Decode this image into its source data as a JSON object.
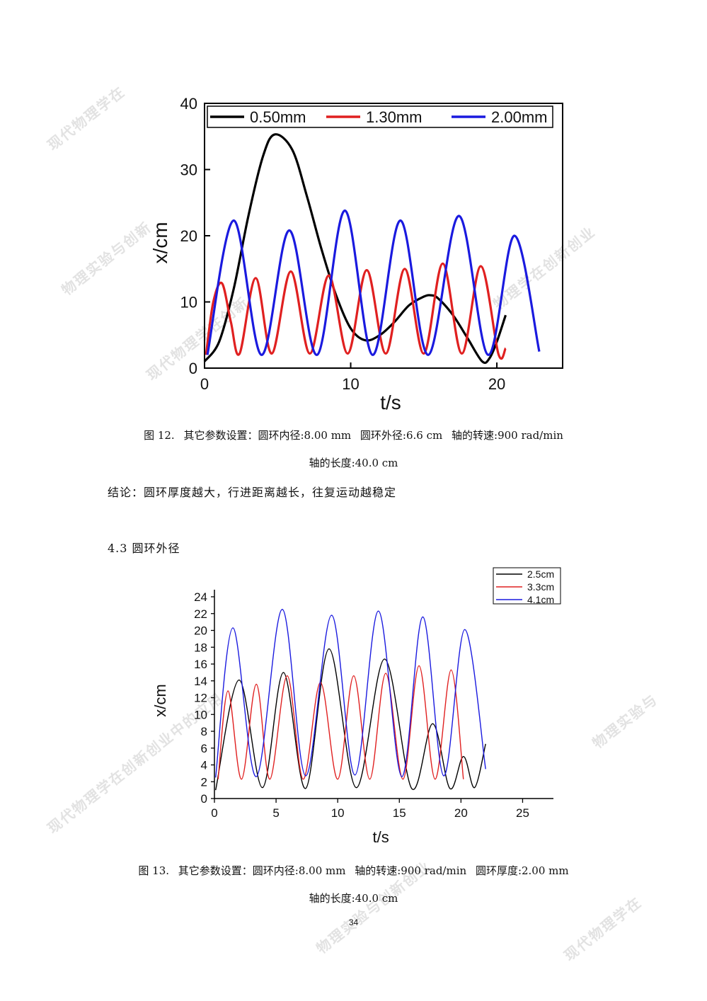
{
  "watermark": {
    "texts": [
      "现代物理学在",
      "物理实验与创新",
      "现代物理学在创新",
      "物理学在创新创业",
      "现代物理学在创新创业中的应用",
      "物理实验与创新创业",
      "现代物理学在",
      "物理实验与"
    ]
  },
  "figure12": {
    "caption_line1": [
      "图 12.",
      "其它参数设置：圆环内径:8.00 mm",
      "圆环外径:6.6 cm",
      "轴的转速:900 rad/min"
    ],
    "caption_line2": "轴的长度:40.0 cm",
    "chart_data": {
      "type": "line",
      "xlabel": "t/s",
      "ylabel": "x/cm",
      "xlim": [
        0,
        24.5
      ],
      "ylim": [
        0,
        40
      ],
      "xticks": [
        0,
        10,
        20
      ],
      "yticks": [
        0,
        10,
        20,
        30,
        40
      ],
      "legend_position": "top",
      "series": [
        {
          "name": "0.50mm",
          "color": "#000000",
          "x": [
            0,
            1,
            2,
            3,
            4,
            4.8,
            6,
            7,
            8,
            9,
            10,
            11,
            12,
            13,
            14,
            15,
            15.5,
            16,
            17,
            18,
            19,
            19.5,
            20,
            20.6
          ],
          "y": [
            1,
            4,
            12,
            23,
            32,
            35.3,
            33,
            26,
            18,
            11,
            6,
            4.2,
            5,
            7,
            9.5,
            10.8,
            11,
            10.5,
            8,
            4.5,
            1,
            1.5,
            4,
            8
          ]
        },
        {
          "name": "1.30mm",
          "color": "#e02020",
          "x": [
            0.1,
            0.6,
            1.2,
            1.8,
            2.4,
            3.5,
            4.6,
            5.9,
            7.2,
            8.5,
            9.8,
            11.1,
            12.4,
            13.7,
            15.0,
            16.3,
            17.6,
            18.9,
            20.1,
            20.6
          ],
          "y": [
            2,
            10,
            12.8,
            7,
            2.2,
            13.6,
            2.2,
            14.6,
            2.2,
            14,
            2.2,
            14.8,
            2.2,
            15,
            2.2,
            15.8,
            2.2,
            15.4,
            2.2,
            3
          ]
        },
        {
          "name": "2.00mm",
          "color": "#1a1adf",
          "x": [
            0.2,
            2.0,
            3.9,
            5.8,
            7.7,
            9.6,
            11.5,
            13.4,
            15.3,
            17.4,
            19.4,
            21.2,
            22.9
          ],
          "y": [
            2,
            22.3,
            2,
            20.8,
            2,
            23.8,
            2,
            22.3,
            2,
            23,
            2,
            20,
            2.5
          ]
        }
      ]
    }
  },
  "conclusion": "结论：圆环厚度越大，行进距离越长，往复运动越稳定",
  "section_heading": "4.3 圆环外径",
  "figure13": {
    "caption_line1": [
      "图 13.",
      "其它参数设置：圆环内径:8.00 mm",
      "轴的转速:900 rad/min",
      "圆环厚度:2.00 mm"
    ],
    "caption_line2": "轴的长度:40.0 cm",
    "chart_data": {
      "type": "line",
      "xlabel": "t/s",
      "ylabel": "x/cm",
      "xlim": [
        0,
        27.5
      ],
      "ylim": [
        0,
        24
      ],
      "xticks": [
        0,
        5,
        10,
        15,
        20,
        25
      ],
      "yticks": [
        0,
        2,
        4,
        6,
        8,
        10,
        12,
        14,
        16,
        18,
        20,
        22,
        24
      ],
      "legend_position": "top-right outside",
      "series": [
        {
          "name": "2.5cm",
          "color": "#000000",
          "x": [
            0.1,
            2.0,
            3.9,
            5.6,
            7.4,
            9.3,
            11.5,
            13.8,
            16.0,
            17.7,
            19.1,
            20.2,
            21.1,
            22.0
          ],
          "y": [
            1,
            14.1,
            1.3,
            15,
            1.2,
            17.8,
            1.3,
            16.6,
            1.2,
            8.9,
            1.2,
            5,
            1.3,
            6.5
          ]
        },
        {
          "name": "3.3cm",
          "color": "#e02020",
          "x": [
            0.3,
            1.1,
            2.2,
            3.4,
            4.5,
            5.9,
            7.2,
            8.6,
            10.0,
            11.3,
            12.6,
            13.9,
            15.3,
            16.6,
            17.9,
            19.2,
            20.2
          ],
          "y": [
            2.3,
            12.8,
            2.3,
            13.6,
            2.3,
            14.6,
            2.3,
            13.8,
            2.3,
            14.6,
            2.3,
            14.9,
            2.3,
            15.8,
            2.3,
            15.3,
            2.3
          ]
        },
        {
          "name": "4.1cm",
          "color": "#1a1adf",
          "x": [
            0.1,
            1.5,
            3.4,
            5.5,
            7.4,
            9.5,
            11.4,
            13.3,
            15.2,
            16.9,
            18.6,
            20.3,
            22.0
          ],
          "y": [
            2.5,
            20.3,
            2.6,
            22.5,
            2.7,
            21.8,
            2.8,
            22.3,
            2.6,
            21.6,
            2.7,
            20.1,
            3.5
          ]
        }
      ]
    }
  },
  "page_number": "34"
}
